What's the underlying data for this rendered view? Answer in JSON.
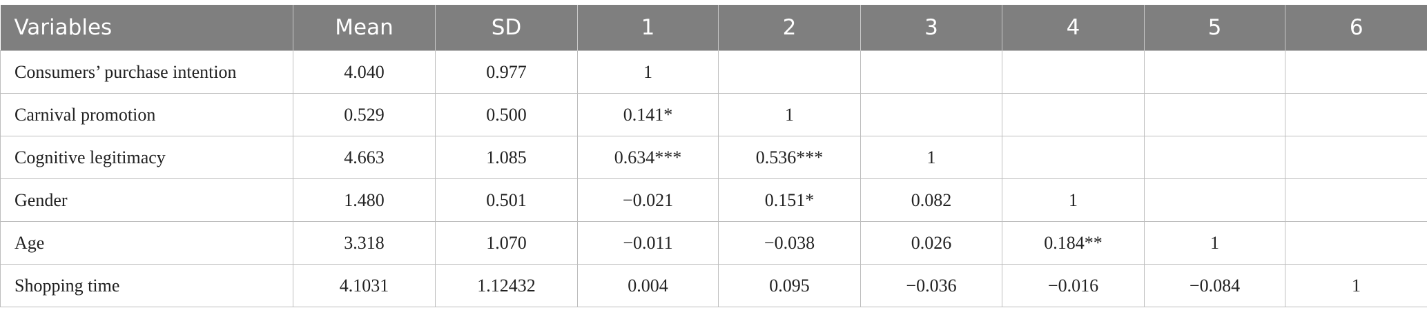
{
  "table": {
    "header": [
      "Variables",
      "Mean",
      "SD",
      "1",
      "2",
      "3",
      "4",
      "5",
      "6"
    ],
    "rows": [
      [
        "Consumers’ purchase intention",
        "4.040",
        "0.977",
        "1"
      ],
      [
        "Carnival promotion",
        "0.529",
        "0.500",
        "0.141*",
        "1"
      ],
      [
        "Cognitive legitimacy",
        "4.663",
        "1.085",
        "0.634***",
        "0.536***",
        "1"
      ],
      [
        "Gender",
        "1.480",
        "0.501",
        "−0.021",
        "0.151*",
        "0.082",
        "1"
      ],
      [
        "Age",
        "3.318",
        "1.070",
        "−0.011",
        "−0.038",
        "0.026",
        "0.184**",
        "1"
      ],
      [
        "Shopping time",
        "4.1031",
        "1.12432",
        "0.004",
        "0.095",
        "−0.036",
        "−0.016",
        "−0.084",
        "1"
      ]
    ]
  }
}
